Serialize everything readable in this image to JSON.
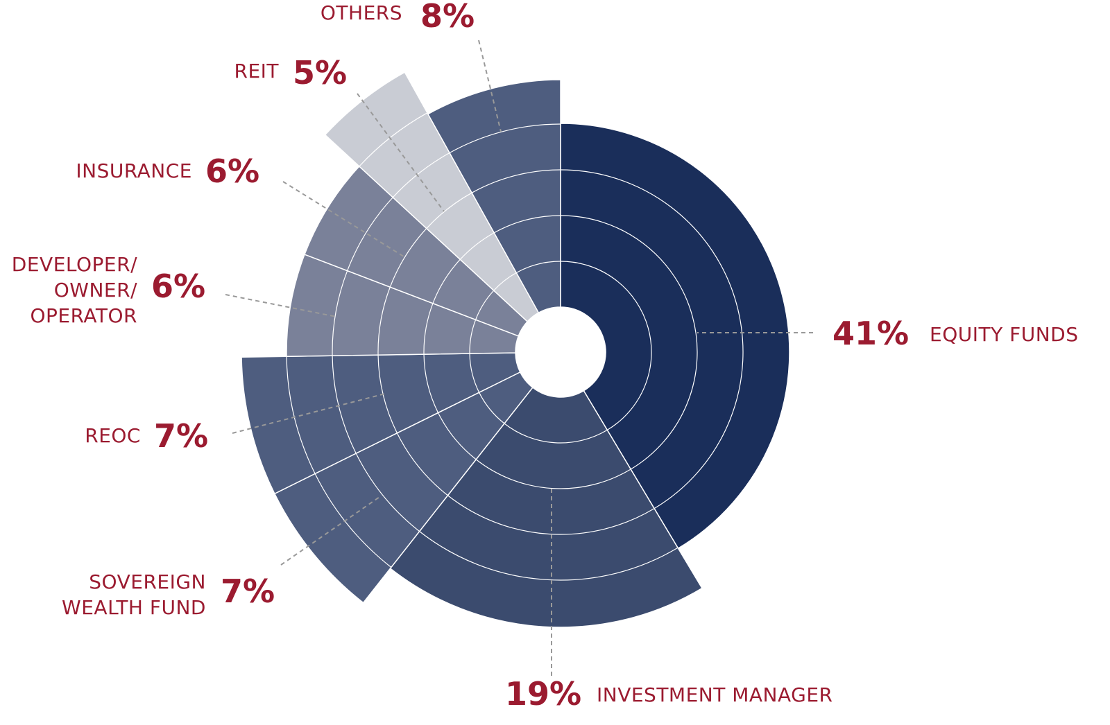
{
  "chart_data": {
    "type": "polar-pie",
    "categories": [
      "EQUITY FUNDS",
      "INVESTMENT MANAGER",
      "SOVEREIGN\nWEALTH FUND",
      "REOC",
      "DEVELOPER/\nOWNER/\nOPERATOR",
      "INSURANCE",
      "REIT",
      "OTHERS"
    ],
    "values": [
      41,
      19,
      7,
      7,
      6,
      6,
      5,
      8
    ],
    "value_labels": [
      "41%",
      "19%",
      "7%",
      "7%",
      "6%",
      "6%",
      "5%",
      "8%"
    ],
    "colors": [
      "#1a2e5a",
      "#3b4b6e",
      "#4e5d7f",
      "#4e5d7f",
      "#7a8199",
      "#7a8199",
      "#c9ccd4",
      "#4e5d7f"
    ]
  }
}
